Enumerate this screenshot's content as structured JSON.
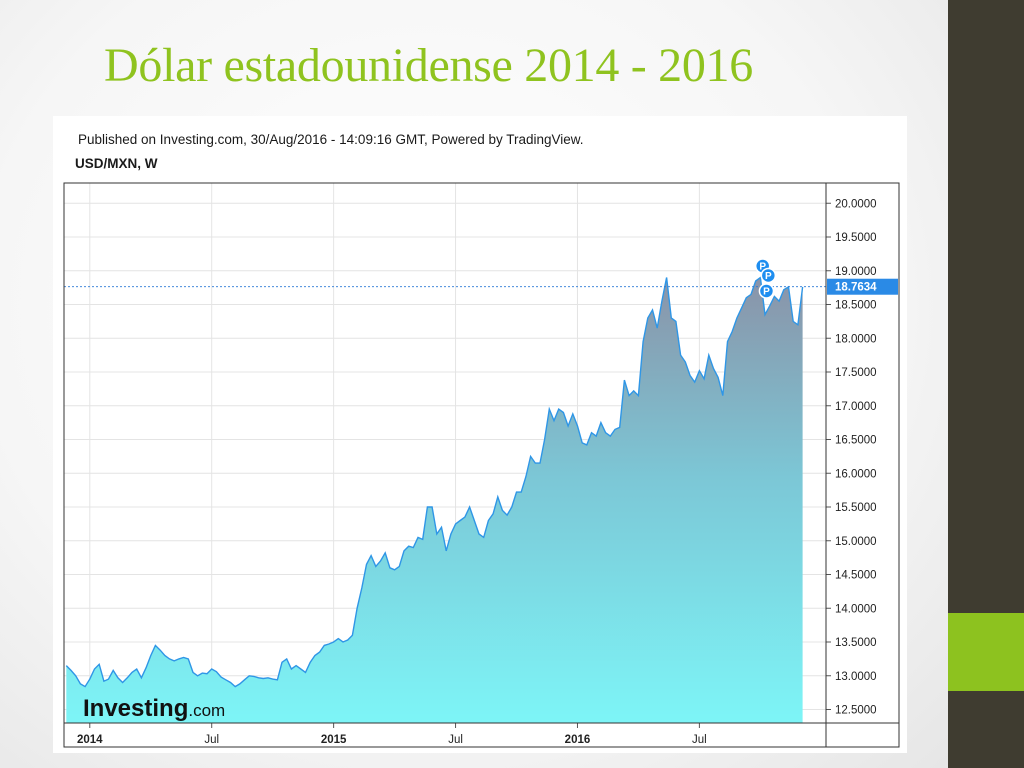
{
  "slide": {
    "title": "Dólar estadounidense 2014 - 2016",
    "colors": {
      "title": "#8fc31f",
      "sidebar": "#3f3c30",
      "accent": "#8dc21f"
    }
  },
  "chart_data": {
    "type": "area",
    "published": "Published on Investing.com, 30/Aug/2016 - 14:09:16 GMT, Powered by TradingView.",
    "symbol": "USD/MXN, W",
    "logo": {
      "text": "Investing",
      "suffix": ".com"
    },
    "x_labels": [
      {
        "label": "2014",
        "week": 5,
        "bold": true
      },
      {
        "label": "Jul",
        "week": 31,
        "bold": false
      },
      {
        "label": "2015",
        "week": 57,
        "bold": true
      },
      {
        "label": "Jul",
        "week": 83,
        "bold": false
      },
      {
        "label": "2016",
        "week": 109,
        "bold": true
      },
      {
        "label": "Jul",
        "week": 135,
        "bold": false
      }
    ],
    "y_ticks": [
      "20.0000",
      "19.5000",
      "19.0000",
      "18.5000",
      "18.0000",
      "17.5000",
      "17.0000",
      "16.5000",
      "16.0000",
      "15.5000",
      "15.0000",
      "14.5000",
      "14.0000",
      "13.5000",
      "13.0000",
      "12.5000"
    ],
    "ylim": [
      12.3,
      20.3
    ],
    "xlim": [
      -0.5,
      162
    ],
    "current_price": "18.7634",
    "current_value": 18.7634,
    "markers": [
      {
        "label": "P",
        "week": 148.5,
        "value": 19.07
      },
      {
        "label": "P",
        "week": 149.7,
        "value": 18.93
      },
      {
        "label": "P",
        "week": 149.3,
        "value": 18.7
      }
    ],
    "series": [
      {
        "values": [
          13.15,
          13.08,
          13.0,
          12.88,
          12.84,
          12.95,
          13.1,
          13.17,
          12.92,
          12.95,
          13.08,
          12.97,
          12.9,
          12.97,
          13.05,
          13.1,
          12.97,
          13.12,
          13.3,
          13.45,
          13.38,
          13.3,
          13.25,
          13.22,
          13.25,
          13.27,
          13.25,
          13.05,
          13.0,
          13.04,
          13.03,
          13.1,
          13.06,
          12.98,
          12.94,
          12.9,
          12.84,
          12.88,
          12.94,
          13.0,
          12.99,
          12.97,
          12.96,
          12.97,
          12.95,
          12.94,
          13.2,
          13.25,
          13.1,
          13.15,
          13.1,
          13.05,
          13.2,
          13.3,
          13.35,
          13.45,
          13.47,
          13.5,
          13.55,
          13.5,
          13.53,
          13.6,
          14.0,
          14.3,
          14.65,
          14.78,
          14.62,
          14.7,
          14.82,
          14.6,
          14.57,
          14.62,
          14.85,
          14.92,
          14.9,
          15.05,
          15.02,
          15.5,
          15.5,
          15.1,
          15.2,
          14.85,
          15.1,
          15.25,
          15.3,
          15.35,
          15.5,
          15.3,
          15.1,
          15.05,
          15.3,
          15.4,
          15.65,
          15.45,
          15.38,
          15.5,
          15.72,
          15.72,
          15.95,
          16.25,
          16.15,
          16.15,
          16.5,
          16.95,
          16.78,
          16.95,
          16.9,
          16.7,
          16.88,
          16.7,
          16.45,
          16.42,
          16.6,
          16.55,
          16.75,
          16.6,
          16.55,
          16.65,
          16.68,
          17.38,
          17.15,
          17.22,
          17.15,
          17.95,
          18.3,
          18.42,
          18.15,
          18.55,
          18.9,
          18.3,
          18.25,
          17.75,
          17.65,
          17.45,
          17.35,
          17.52,
          17.4,
          17.75,
          17.55,
          17.42,
          17.15,
          17.95,
          18.1,
          18.3,
          18.45,
          18.6,
          18.65,
          18.85,
          18.9,
          18.35,
          18.48,
          18.62,
          18.55,
          18.72,
          18.76,
          18.25,
          18.2,
          18.76
        ]
      }
    ]
  }
}
